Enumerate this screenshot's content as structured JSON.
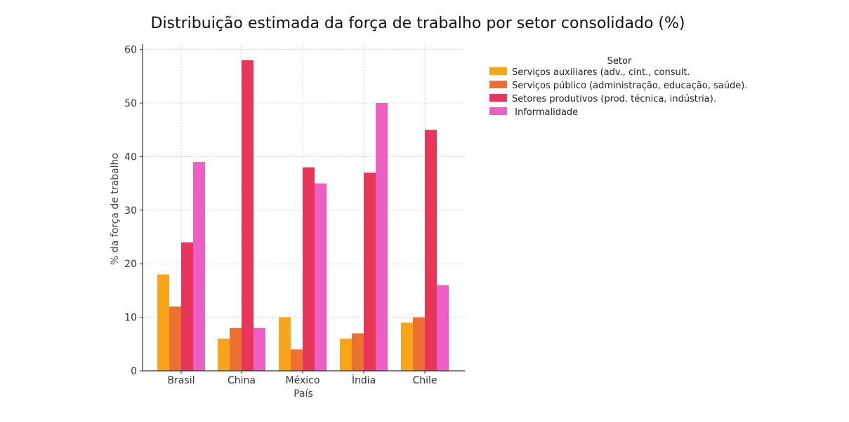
{
  "chart_data": {
    "type": "bar",
    "title": "Distribuição estimada da força de trabalho por setor consolidado (%)",
    "xlabel": "País",
    "ylabel": "% da força de trabalho",
    "categories": [
      "Brasil",
      "China",
      "México",
      "Índia",
      "Chile"
    ],
    "ylim": [
      0,
      61
    ],
    "yticks": [
      0,
      10,
      20,
      30,
      40,
      50,
      60
    ],
    "grid": true,
    "legend": {
      "title": "Setor",
      "placement": "right, outside plot"
    },
    "series": [
      {
        "name": "Serviços auxiliares (adv., cint., consult.",
        "color": "#F9A51A",
        "values": [
          18,
          6,
          10,
          6,
          9
        ]
      },
      {
        "name": "Serviços público (administração, educação, saúde).",
        "color": "#EB7032",
        "values": [
          12,
          8,
          4,
          7,
          10
        ]
      },
      {
        "name": "Setores produtivos (prod. técnica, indústria).",
        "color": "#E8365A",
        "values": [
          24,
          58,
          38,
          37,
          45
        ]
      },
      {
        "name": " Informalidade",
        "color": "#EE5FC3",
        "values": [
          39,
          8,
          35,
          50,
          16
        ]
      }
    ]
  }
}
